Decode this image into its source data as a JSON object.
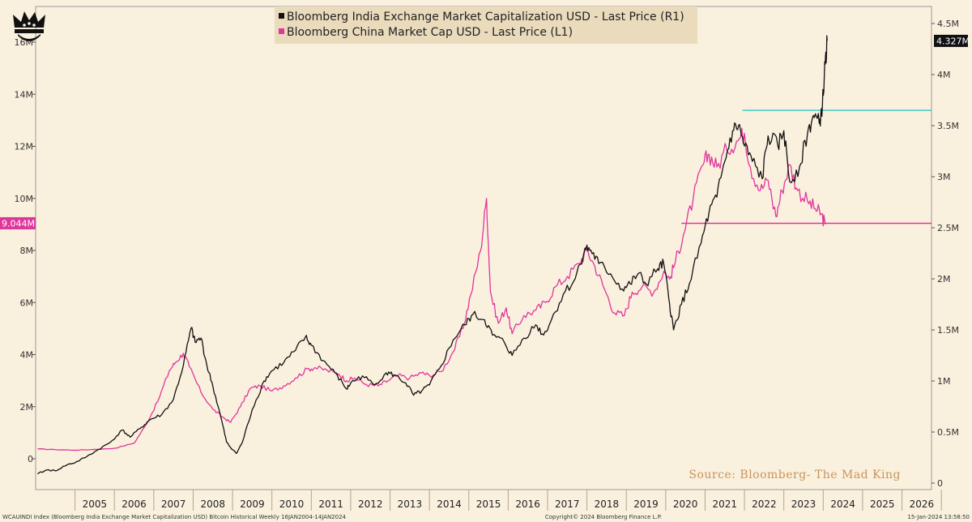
{
  "chart_data": {
    "type": "line",
    "legend": [
      "Bloomberg India Exchange Market Capitalization USD - Last Price (R1)",
      "Bloomberg China Market Cap USD - Last Price (L1)"
    ],
    "x_ticks": [
      "2005",
      "2006",
      "2007",
      "2008",
      "2009",
      "2010",
      "2011",
      "2012",
      "2013",
      "2014",
      "2015",
      "2016",
      "2017",
      "2018",
      "2019",
      "2020",
      "2021",
      "2022",
      "2023",
      "2024",
      "2025",
      "2026"
    ],
    "left_axis": {
      "ticks": [
        "0",
        "2M",
        "4M",
        "6M",
        "8M",
        "10M",
        "12M",
        "14M",
        "16M"
      ],
      "ylim": [
        0,
        16
      ],
      "unit": "M"
    },
    "right_axis": {
      "ticks": [
        "0",
        "0.5M",
        "1M",
        "1.5M",
        "2M",
        "2.5M",
        "3M",
        "3.5M",
        "4M",
        "4.5M"
      ],
      "ylim": [
        0,
        4.5
      ],
      "unit": "M"
    },
    "series": [
      {
        "name": "Bloomberg India Exchange Market Capitalization USD - Last Price (R1)",
        "axis": "right",
        "color": "#111111",
        "last_label": "4.327M",
        "reference_line": 3.65,
        "reference_color": "#3ec9c2",
        "points": [
          [
            2004.05,
            0.09
          ],
          [
            2004.3,
            0.13
          ],
          [
            2004.5,
            0.12
          ],
          [
            2004.8,
            0.18
          ],
          [
            2005.0,
            0.2
          ],
          [
            2005.3,
            0.26
          ],
          [
            2005.6,
            0.33
          ],
          [
            2005.9,
            0.4
          ],
          [
            2006.2,
            0.52
          ],
          [
            2006.4,
            0.45
          ],
          [
            2006.7,
            0.55
          ],
          [
            2006.9,
            0.62
          ],
          [
            2007.2,
            0.67
          ],
          [
            2007.5,
            0.82
          ],
          [
            2007.75,
            1.15
          ],
          [
            2007.95,
            1.52
          ],
          [
            2008.05,
            1.38
          ],
          [
            2008.2,
            1.42
          ],
          [
            2008.35,
            1.15
          ],
          [
            2008.5,
            0.95
          ],
          [
            2008.7,
            0.65
          ],
          [
            2008.85,
            0.4
          ],
          [
            2008.95,
            0.35
          ],
          [
            2009.1,
            0.29
          ],
          [
            2009.25,
            0.4
          ],
          [
            2009.5,
            0.72
          ],
          [
            2009.8,
            1.0
          ],
          [
            2010.0,
            1.1
          ],
          [
            2010.3,
            1.18
          ],
          [
            2010.6,
            1.3
          ],
          [
            2010.85,
            1.43
          ],
          [
            2011.0,
            1.35
          ],
          [
            2011.3,
            1.2
          ],
          [
            2011.6,
            1.08
          ],
          [
            2011.9,
            0.92
          ],
          [
            2012.0,
            0.98
          ],
          [
            2012.3,
            1.05
          ],
          [
            2012.6,
            0.96
          ],
          [
            2012.9,
            1.08
          ],
          [
            2013.1,
            1.06
          ],
          [
            2013.4,
            0.98
          ],
          [
            2013.6,
            0.86
          ],
          [
            2013.8,
            0.9
          ],
          [
            2014.0,
            0.96
          ],
          [
            2014.3,
            1.15
          ],
          [
            2014.6,
            1.4
          ],
          [
            2014.9,
            1.55
          ],
          [
            2015.1,
            1.65
          ],
          [
            2015.4,
            1.6
          ],
          [
            2015.6,
            1.45
          ],
          [
            2015.9,
            1.38
          ],
          [
            2016.1,
            1.25
          ],
          [
            2016.4,
            1.42
          ],
          [
            2016.7,
            1.55
          ],
          [
            2016.9,
            1.45
          ],
          [
            2017.1,
            1.6
          ],
          [
            2017.4,
            1.85
          ],
          [
            2017.7,
            2.0
          ],
          [
            2017.95,
            2.3
          ],
          [
            2018.1,
            2.28
          ],
          [
            2018.3,
            2.15
          ],
          [
            2018.6,
            2.05
          ],
          [
            2018.9,
            1.9
          ],
          [
            2019.1,
            1.95
          ],
          [
            2019.3,
            2.05
          ],
          [
            2019.5,
            1.95
          ],
          [
            2019.8,
            2.1
          ],
          [
            2019.95,
            2.15
          ],
          [
            2020.1,
            1.75
          ],
          [
            2020.2,
            1.5
          ],
          [
            2020.4,
            1.75
          ],
          [
            2020.6,
            1.95
          ],
          [
            2020.9,
            2.35
          ],
          [
            2021.1,
            2.65
          ],
          [
            2021.3,
            2.8
          ],
          [
            2021.5,
            3.15
          ],
          [
            2021.7,
            3.45
          ],
          [
            2021.85,
            3.5
          ],
          [
            2022.0,
            3.3
          ],
          [
            2022.2,
            3.15
          ],
          [
            2022.45,
            2.98
          ],
          [
            2022.6,
            3.4
          ],
          [
            2022.85,
            3.3
          ],
          [
            2023.0,
            3.45
          ],
          [
            2023.15,
            2.95
          ],
          [
            2023.4,
            3.1
          ],
          [
            2023.6,
            3.42
          ],
          [
            2023.75,
            3.6
          ],
          [
            2023.9,
            3.52
          ],
          [
            2023.98,
            3.7
          ],
          [
            2024.05,
            4.1
          ],
          [
            2024.1,
            4.33
          ]
        ]
      },
      {
        "name": "Bloomberg China Market Cap USD - Last Price (L1)",
        "axis": "left",
        "color": "#e0359a",
        "last_label": "9.044M",
        "reference_line": 9.044,
        "reference_color": "#e0359a",
        "points": [
          [
            2004.05,
            0.38
          ],
          [
            2004.5,
            0.35
          ],
          [
            2005.0,
            0.33
          ],
          [
            2005.5,
            0.36
          ],
          [
            2006.0,
            0.4
          ],
          [
            2006.5,
            0.6
          ],
          [
            2006.8,
            1.3
          ],
          [
            2007.1,
            2.2
          ],
          [
            2007.4,
            3.4
          ],
          [
            2007.55,
            3.7
          ],
          [
            2007.75,
            4.05
          ],
          [
            2007.9,
            3.55
          ],
          [
            2008.2,
            2.55
          ],
          [
            2008.5,
            1.9
          ],
          [
            2008.75,
            1.6
          ],
          [
            2008.95,
            1.4
          ],
          [
            2009.2,
            2.0
          ],
          [
            2009.45,
            2.7
          ],
          [
            2009.7,
            2.8
          ],
          [
            2010.0,
            2.6
          ],
          [
            2010.3,
            2.8
          ],
          [
            2010.6,
            3.1
          ],
          [
            2010.9,
            3.45
          ],
          [
            2011.1,
            3.5
          ],
          [
            2011.4,
            3.4
          ],
          [
            2011.7,
            3.25
          ],
          [
            2011.9,
            3.0
          ],
          [
            2012.1,
            3.1
          ],
          [
            2012.4,
            2.85
          ],
          [
            2012.7,
            2.8
          ],
          [
            2012.95,
            3.0
          ],
          [
            2013.2,
            3.2
          ],
          [
            2013.5,
            3.1
          ],
          [
            2013.8,
            3.3
          ],
          [
            2014.0,
            3.2
          ],
          [
            2014.3,
            3.35
          ],
          [
            2014.6,
            4.1
          ],
          [
            2014.85,
            5.0
          ],
          [
            2015.05,
            6.3
          ],
          [
            2015.3,
            8.0
          ],
          [
            2015.45,
            10.0
          ],
          [
            2015.55,
            6.4
          ],
          [
            2015.75,
            5.2
          ],
          [
            2015.95,
            5.8
          ],
          [
            2016.1,
            4.8
          ],
          [
            2016.4,
            5.5
          ],
          [
            2016.7,
            5.7
          ],
          [
            2016.95,
            6.0
          ],
          [
            2017.2,
            6.6
          ],
          [
            2017.5,
            7.0
          ],
          [
            2017.8,
            7.5
          ],
          [
            2018.0,
            8.0
          ],
          [
            2018.2,
            7.4
          ],
          [
            2018.45,
            6.5
          ],
          [
            2018.7,
            5.6
          ],
          [
            2018.95,
            5.5
          ],
          [
            2019.15,
            6.4
          ],
          [
            2019.4,
            6.6
          ],
          [
            2019.7,
            6.4
          ],
          [
            2019.95,
            7.2
          ],
          [
            2020.1,
            6.9
          ],
          [
            2020.25,
            7.6
          ],
          [
            2020.45,
            8.6
          ],
          [
            2020.7,
            10.0
          ],
          [
            2020.95,
            11.3
          ],
          [
            2021.1,
            11.7
          ],
          [
            2021.3,
            11.2
          ],
          [
            2021.55,
            11.9
          ],
          [
            2021.8,
            12.2
          ],
          [
            2022.0,
            12.5
          ],
          [
            2022.15,
            11.2
          ],
          [
            2022.4,
            10.3
          ],
          [
            2022.6,
            10.7
          ],
          [
            2022.8,
            9.3
          ],
          [
            2022.95,
            10.3
          ],
          [
            2023.15,
            11.3
          ],
          [
            2023.35,
            10.3
          ],
          [
            2023.6,
            9.9
          ],
          [
            2023.8,
            9.6
          ],
          [
            2023.95,
            9.4
          ],
          [
            2024.05,
            9.0
          ]
        ]
      }
    ],
    "source": "Source: Bloomberg- The Mad King"
  },
  "footer": {
    "left": "WCAUINDI Index (Bloomberg India Exchange Market Capitalization USD) Bitcoin Historical  Weekly 16JAN2004-14JAN2024",
    "center": "Copyright© 2024 Bloomberg Finance L.P.",
    "right": "15-Jan-2024 13:58:50"
  },
  "icons": {
    "logo": "crown-icon"
  },
  "colors": {
    "background": "#faf0de",
    "legend_bg": "#eadbbd",
    "india": "#111111",
    "china": "#e0359a",
    "reference_cyan": "#3ec9c2"
  }
}
